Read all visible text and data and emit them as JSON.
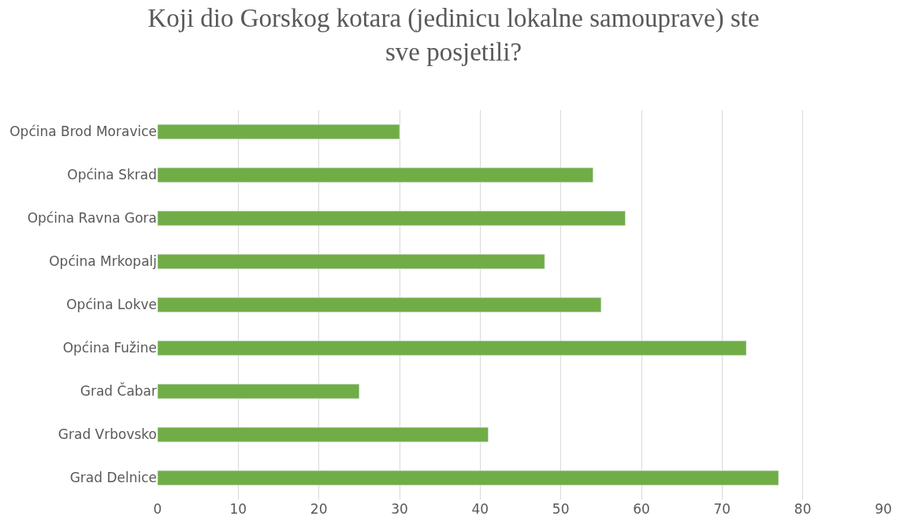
{
  "chart_data": {
    "type": "bar",
    "orientation": "horizontal",
    "title": "Koji dio Gorskog kotara (jedinicu lokalne samouprave) ste\nsve posjetili?",
    "categories": [
      "Općina Brod Moravice",
      "Općina Skrad",
      "Općina Ravna Gora",
      "Općina Mrkopalj",
      "Općina Lokve",
      "Općina Fužine",
      "Grad Čabar",
      "Grad Vrbovsko",
      "Grad Delnice"
    ],
    "values": [
      30,
      54,
      58,
      48,
      55,
      73,
      25,
      41,
      77
    ],
    "color": "#70ad47",
    "xlim": [
      0,
      90
    ],
    "xticks": [
      0,
      10,
      20,
      30,
      40,
      50,
      60,
      70,
      80,
      90
    ],
    "grid": "x"
  }
}
